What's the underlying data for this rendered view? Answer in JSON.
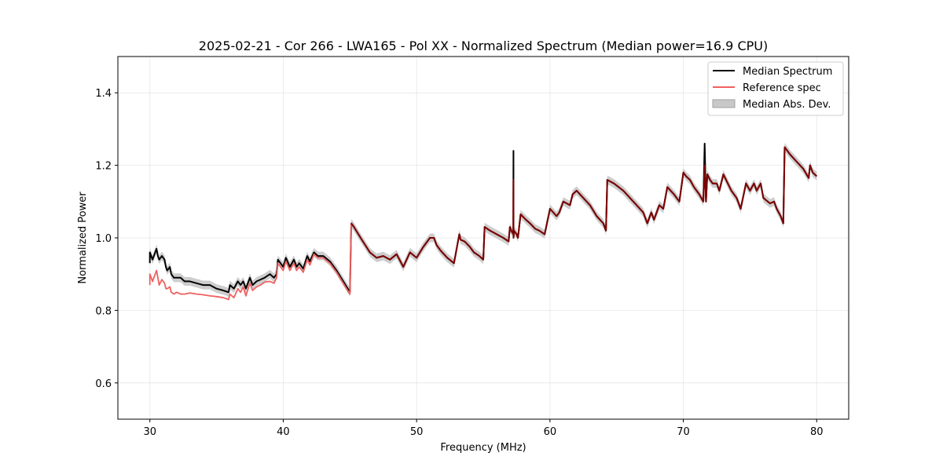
{
  "chart_data": {
    "type": "line",
    "title": "2025-02-21 - Cor 266 - LWA165 - Pol XX - Normalized Spectrum (Median power=16.9 CPU)",
    "xlabel": "Frequency (MHz)",
    "ylabel": "Normalized Power",
    "xlim": [
      27.6,
      82.4
    ],
    "ylim": [
      0.5,
      1.5
    ],
    "xticks": [
      30,
      40,
      50,
      60,
      70,
      80
    ],
    "yticks": [
      0.6,
      0.8,
      1.0,
      1.2,
      1.4
    ],
    "xtick_labels": [
      "30",
      "40",
      "50",
      "60",
      "70",
      "80"
    ],
    "ytick_labels": [
      "0.6",
      "0.8",
      "1.0",
      "1.2",
      "1.4"
    ],
    "grid": true,
    "legend": {
      "position": "top-right",
      "entries": [
        {
          "label": "Median Spectrum",
          "color": "#000000",
          "kind": "line"
        },
        {
          "label": "Reference spec",
          "color": "#f06060",
          "kind": "line"
        },
        {
          "label": "Median Abs. Dev.",
          "color": "#c8c8c8",
          "kind": "patch"
        }
      ]
    },
    "series": [
      {
        "name": "Median Spectrum",
        "color": "#000000",
        "x": [
          30.0,
          30.0,
          30.2,
          30.5,
          30.6,
          30.7,
          30.9,
          31.1,
          31.2,
          31.3,
          31.5,
          31.6,
          31.8,
          32.0,
          32.3,
          32.6,
          33.0,
          33.5,
          34.0,
          34.5,
          35.0,
          35.5,
          35.9,
          36.0,
          36.3,
          36.6,
          36.8,
          37.0,
          37.2,
          37.5,
          37.7,
          38.0,
          38.3,
          38.6,
          39.0,
          39.3,
          39.5,
          39.6,
          40.0,
          40.2,
          40.5,
          40.8,
          41.0,
          41.2,
          41.5,
          41.8,
          42.0,
          42.3,
          42.6,
          43.0,
          43.5,
          44.0,
          44.5,
          45.0,
          45.1,
          45.3,
          45.8,
          46.5,
          47.0,
          47.5,
          48.0,
          48.5,
          49.0,
          49.5,
          50.0,
          50.5,
          51.0,
          51.3,
          51.5,
          51.8,
          52.3,
          52.8,
          53.2,
          53.3,
          53.6,
          54.0,
          54.3,
          54.7,
          55.0,
          55.1,
          55.5,
          56.0,
          56.5,
          56.9,
          57.0,
          57.1,
          57.25,
          57.26,
          57.27,
          57.3,
          57.5,
          57.6,
          57.8,
          58.2,
          58.5,
          58.9,
          59.2,
          59.6,
          60.0,
          60.5,
          60.7,
          61.0,
          61.5,
          61.7,
          62.0,
          62.5,
          63.0,
          63.5,
          64.0,
          64.2,
          64.3,
          64.8,
          65.5,
          66.0,
          66.5,
          67.0,
          67.3,
          67.6,
          67.8,
          68.2,
          68.5,
          68.8,
          69.3,
          69.7,
          70.0,
          70.2,
          70.5,
          70.8,
          71.2,
          71.5,
          71.6,
          71.7,
          71.8,
          72.0,
          72.2,
          72.5,
          72.7,
          73.0,
          73.2,
          73.6,
          74.0,
          74.3,
          74.7,
          75.0,
          75.3,
          75.5,
          75.8,
          76.0,
          76.5,
          76.8,
          77.0,
          77.3,
          77.5,
          77.6,
          78.0,
          78.5,
          79.0,
          79.4,
          79.5,
          79.7,
          80.0
        ],
        "y": [
          0.93,
          0.96,
          0.94,
          0.97,
          0.95,
          0.94,
          0.95,
          0.94,
          0.92,
          0.91,
          0.92,
          0.9,
          0.89,
          0.89,
          0.89,
          0.88,
          0.88,
          0.875,
          0.87,
          0.87,
          0.86,
          0.855,
          0.85,
          0.87,
          0.86,
          0.88,
          0.87,
          0.88,
          0.86,
          0.89,
          0.87,
          0.88,
          0.885,
          0.89,
          0.9,
          0.89,
          0.9,
          0.94,
          0.92,
          0.945,
          0.92,
          0.94,
          0.92,
          0.93,
          0.915,
          0.95,
          0.935,
          0.96,
          0.95,
          0.95,
          0.935,
          0.91,
          0.88,
          0.85,
          1.04,
          1.03,
          1.0,
          0.96,
          0.945,
          0.95,
          0.94,
          0.955,
          0.92,
          0.96,
          0.945,
          0.975,
          1.0,
          1.0,
          0.98,
          0.965,
          0.945,
          0.93,
          1.01,
          0.995,
          0.99,
          0.975,
          0.96,
          0.95,
          0.94,
          1.03,
          1.02,
          1.01,
          1.0,
          0.99,
          1.03,
          1.02,
          1.01,
          1.24,
          1.0,
          1.02,
          1.01,
          1.0,
          1.065,
          1.05,
          1.04,
          1.025,
          1.02,
          1.01,
          1.08,
          1.06,
          1.07,
          1.1,
          1.09,
          1.12,
          1.13,
          1.11,
          1.09,
          1.06,
          1.04,
          1.02,
          1.16,
          1.15,
          1.13,
          1.11,
          1.09,
          1.07,
          1.04,
          1.07,
          1.05,
          1.09,
          1.08,
          1.14,
          1.12,
          1.1,
          1.18,
          1.17,
          1.16,
          1.14,
          1.12,
          1.1,
          1.26,
          1.1,
          1.175,
          1.16,
          1.15,
          1.15,
          1.13,
          1.175,
          1.16,
          1.13,
          1.11,
          1.08,
          1.15,
          1.13,
          1.15,
          1.13,
          1.15,
          1.11,
          1.095,
          1.1,
          1.08,
          1.06,
          1.04,
          1.25,
          1.23,
          1.21,
          1.19,
          1.165,
          1.2,
          1.18,
          1.17
        ]
      },
      {
        "name": "Reference spec",
        "color": "#f06060",
        "x": [
          30.0,
          30.0,
          30.2,
          30.5,
          30.6,
          30.7,
          30.9,
          31.1,
          31.2,
          31.3,
          31.5,
          31.6,
          31.8,
          32.0,
          32.3,
          32.6,
          33.0,
          33.5,
          34.0,
          34.5,
          35.0,
          35.5,
          35.9,
          36.0,
          36.3,
          36.6,
          36.8,
          37.0,
          37.2,
          37.5,
          37.7,
          38.0,
          38.3,
          38.6,
          39.0,
          39.3,
          39.5,
          39.6,
          40.0,
          40.2,
          40.5,
          40.8,
          41.0,
          41.2,
          41.5,
          41.8,
          42.0,
          42.3,
          42.6,
          43.0,
          43.5,
          44.0,
          44.5,
          45.0,
          45.1,
          45.3,
          45.8,
          46.5,
          47.0,
          47.5,
          48.0,
          48.5,
          49.0,
          49.5,
          50.0,
          50.5,
          51.0,
          51.3,
          51.5,
          51.8,
          52.3,
          52.8,
          53.2,
          53.3,
          53.6,
          54.0,
          54.3,
          54.7,
          55.0,
          55.1,
          55.5,
          56.0,
          56.5,
          56.9,
          57.0,
          57.1,
          57.25,
          57.26,
          57.27,
          57.3,
          57.5,
          57.6,
          57.8,
          58.2,
          58.5,
          58.9,
          59.2,
          59.6,
          60.0,
          60.5,
          60.7,
          61.0,
          61.5,
          61.7,
          62.0,
          62.5,
          63.0,
          63.5,
          64.0,
          64.2,
          64.3,
          64.8,
          65.5,
          66.0,
          66.5,
          67.0,
          67.3,
          67.6,
          67.8,
          68.2,
          68.5,
          68.8,
          69.3,
          69.7,
          70.0,
          70.2,
          70.5,
          70.8,
          71.2,
          71.5,
          71.6,
          71.7,
          71.8,
          72.0,
          72.2,
          72.5,
          72.7,
          73.0,
          73.2,
          73.6,
          74.0,
          74.3,
          74.7,
          75.0,
          75.3,
          75.5,
          75.8,
          76.0,
          76.5,
          76.8,
          77.0,
          77.3,
          77.5,
          77.6,
          78.0,
          78.5,
          79.0,
          79.4,
          79.5,
          79.7,
          80.0
        ],
        "y": [
          0.87,
          0.9,
          0.88,
          0.91,
          0.89,
          0.87,
          0.885,
          0.875,
          0.86,
          0.86,
          0.865,
          0.85,
          0.845,
          0.85,
          0.845,
          0.845,
          0.848,
          0.845,
          0.843,
          0.84,
          0.838,
          0.835,
          0.83,
          0.845,
          0.835,
          0.86,
          0.85,
          0.865,
          0.84,
          0.875,
          0.855,
          0.865,
          0.87,
          0.878,
          0.88,
          0.875,
          0.89,
          0.93,
          0.91,
          0.935,
          0.91,
          0.93,
          0.91,
          0.92,
          0.905,
          0.94,
          0.925,
          0.955,
          0.945,
          0.945,
          0.93,
          0.905,
          0.875,
          0.845,
          1.04,
          1.03,
          1.0,
          0.96,
          0.945,
          0.95,
          0.94,
          0.955,
          0.92,
          0.96,
          0.945,
          0.975,
          1.0,
          1.0,
          0.98,
          0.965,
          0.945,
          0.93,
          1.01,
          0.995,
          0.99,
          0.975,
          0.96,
          0.95,
          0.94,
          1.03,
          1.02,
          1.01,
          1.0,
          0.99,
          1.03,
          1.02,
          1.01,
          1.16,
          1.0,
          1.02,
          1.01,
          1.0,
          1.065,
          1.05,
          1.04,
          1.025,
          1.02,
          1.01,
          1.08,
          1.06,
          1.07,
          1.1,
          1.09,
          1.12,
          1.13,
          1.11,
          1.09,
          1.06,
          1.04,
          1.02,
          1.16,
          1.15,
          1.13,
          1.11,
          1.09,
          1.07,
          1.04,
          1.07,
          1.05,
          1.09,
          1.08,
          1.14,
          1.12,
          1.1,
          1.18,
          1.17,
          1.16,
          1.14,
          1.12,
          1.1,
          1.2,
          1.1,
          1.175,
          1.16,
          1.15,
          1.15,
          1.13,
          1.175,
          1.16,
          1.13,
          1.11,
          1.08,
          1.15,
          1.13,
          1.15,
          1.13,
          1.15,
          1.11,
          1.095,
          1.1,
          1.08,
          1.06,
          1.04,
          1.25,
          1.23,
          1.21,
          1.19,
          1.165,
          1.2,
          1.18,
          1.17
        ]
      }
    ],
    "band": {
      "name": "Median Abs. Dev.",
      "color": "#c8c8c8",
      "half_width": 0.012
    }
  }
}
